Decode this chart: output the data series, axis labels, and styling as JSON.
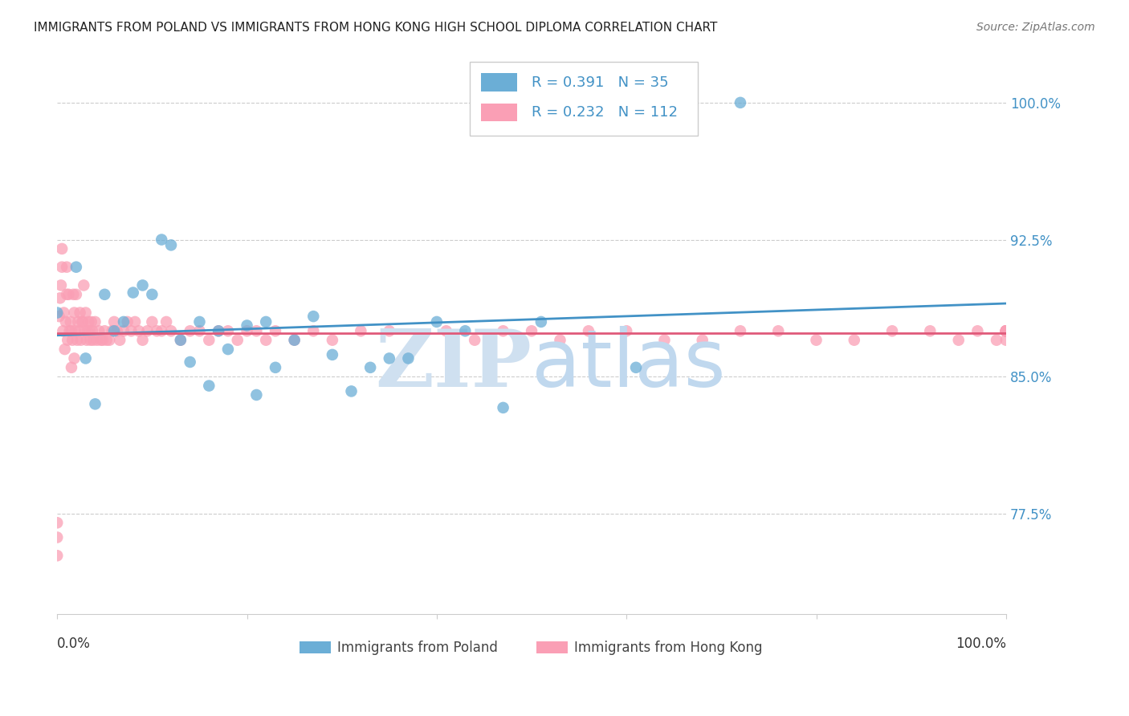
{
  "title": "IMMIGRANTS FROM POLAND VS IMMIGRANTS FROM HONG KONG HIGH SCHOOL DIPLOMA CORRELATION CHART",
  "source": "Source: ZipAtlas.com",
  "ylabel": "High School Diploma",
  "ytick_values": [
    0.775,
    0.85,
    0.925,
    1.0
  ],
  "ytick_labels": [
    "77.5%",
    "85.0%",
    "92.5%",
    "100.0%"
  ],
  "xlim": [
    0.0,
    1.0
  ],
  "ylim": [
    0.72,
    1.03
  ],
  "legend_blue_R": "0.391",
  "legend_blue_N": "35",
  "legend_pink_R": "0.232",
  "legend_pink_N": "112",
  "legend_label_blue": "Immigrants from Poland",
  "legend_label_pink": "Immigrants from Hong Kong",
  "color_blue": "#6baed6",
  "color_pink": "#fa9fb5",
  "trendline_blue": "#4292c6",
  "trendline_pink": "#e05a7a",
  "watermark_zip_color": "#cfe0f0",
  "watermark_atlas_color": "#c0d8ee",
  "grid_color": "#cccccc",
  "poland_x": [
    0.0,
    0.02,
    0.03,
    0.04,
    0.05,
    0.06,
    0.07,
    0.08,
    0.09,
    0.1,
    0.11,
    0.12,
    0.13,
    0.14,
    0.15,
    0.16,
    0.17,
    0.18,
    0.2,
    0.21,
    0.22,
    0.23,
    0.25,
    0.27,
    0.29,
    0.31,
    0.33,
    0.35,
    0.37,
    0.4,
    0.43,
    0.47,
    0.51,
    0.61,
    0.72
  ],
  "poland_y": [
    0.885,
    0.91,
    0.86,
    0.835,
    0.895,
    0.875,
    0.88,
    0.896,
    0.9,
    0.895,
    0.925,
    0.922,
    0.87,
    0.858,
    0.88,
    0.845,
    0.875,
    0.865,
    0.878,
    0.84,
    0.88,
    0.855,
    0.87,
    0.883,
    0.862,
    0.842,
    0.855,
    0.86,
    0.86,
    0.88,
    0.875,
    0.833,
    0.88,
    0.855,
    1.0
  ],
  "hk_x": [
    0.0,
    0.0,
    0.0,
    0.002,
    0.003,
    0.004,
    0.005,
    0.005,
    0.006,
    0.007,
    0.008,
    0.009,
    0.01,
    0.01,
    0.011,
    0.012,
    0.013,
    0.014,
    0.015,
    0.015,
    0.016,
    0.017,
    0.018,
    0.018,
    0.019,
    0.02,
    0.021,
    0.022,
    0.023,
    0.024,
    0.025,
    0.026,
    0.027,
    0.028,
    0.029,
    0.03,
    0.031,
    0.032,
    0.033,
    0.034,
    0.035,
    0.036,
    0.037,
    0.038,
    0.04,
    0.042,
    0.044,
    0.046,
    0.048,
    0.05,
    0.052,
    0.055,
    0.058,
    0.06,
    0.063,
    0.066,
    0.07,
    0.074,
    0.078,
    0.082,
    0.086,
    0.09,
    0.095,
    0.1,
    0.105,
    0.11,
    0.115,
    0.12,
    0.13,
    0.14,
    0.15,
    0.16,
    0.17,
    0.18,
    0.19,
    0.2,
    0.21,
    0.22,
    0.23,
    0.25,
    0.27,
    0.29,
    0.32,
    0.35,
    0.38,
    0.41,
    0.44,
    0.47,
    0.5,
    0.53,
    0.56,
    0.6,
    0.64,
    0.68,
    0.72,
    0.76,
    0.8,
    0.84,
    0.88,
    0.92,
    0.95,
    0.97,
    0.99,
    1.0,
    1.0,
    1.0,
    1.0,
    1.0,
    1.0,
    1.0,
    1.0,
    1.0
  ],
  "hk_y": [
    0.752,
    0.762,
    0.77,
    0.883,
    0.893,
    0.9,
    0.91,
    0.92,
    0.875,
    0.885,
    0.865,
    0.88,
    0.895,
    0.91,
    0.87,
    0.895,
    0.875,
    0.88,
    0.855,
    0.875,
    0.87,
    0.895,
    0.885,
    0.86,
    0.875,
    0.895,
    0.87,
    0.88,
    0.875,
    0.885,
    0.87,
    0.88,
    0.88,
    0.9,
    0.875,
    0.885,
    0.87,
    0.875,
    0.88,
    0.875,
    0.87,
    0.88,
    0.875,
    0.87,
    0.88,
    0.87,
    0.875,
    0.87,
    0.87,
    0.875,
    0.87,
    0.87,
    0.875,
    0.88,
    0.875,
    0.87,
    0.875,
    0.88,
    0.875,
    0.88,
    0.875,
    0.87,
    0.875,
    0.88,
    0.875,
    0.875,
    0.88,
    0.875,
    0.87,
    0.875,
    0.875,
    0.87,
    0.875,
    0.875,
    0.87,
    0.875,
    0.875,
    0.87,
    0.875,
    0.87,
    0.875,
    0.87,
    0.875,
    0.875,
    0.87,
    0.875,
    0.87,
    0.875,
    0.875,
    0.87,
    0.875,
    0.875,
    0.87,
    0.87,
    0.875,
    0.875,
    0.87,
    0.87,
    0.875,
    0.875,
    0.87,
    0.875,
    0.87,
    0.875,
    0.875,
    0.87,
    0.875,
    0.875,
    0.875,
    0.875,
    0.875,
    0.875
  ]
}
